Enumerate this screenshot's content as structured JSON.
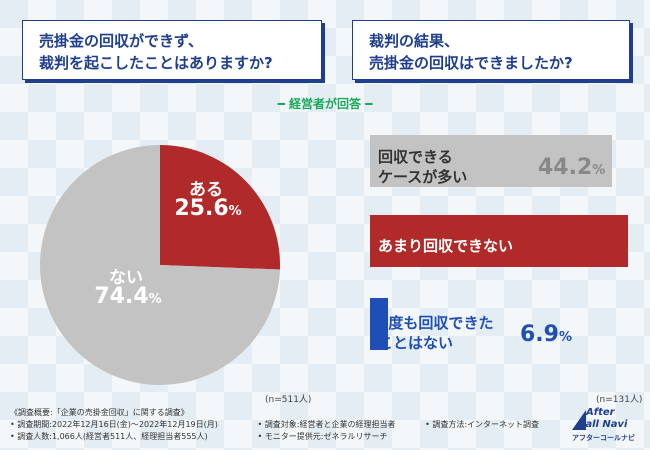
{
  "question1": {
    "line1": "売掛金の回収ができず、",
    "line2": "裁判を起こしたことはありますか?"
  },
  "question2": {
    "line1": "裁判の結果、",
    "line2": "売掛金の回収はできましたか?"
  },
  "subhead": "━ 経営者が回答 ━",
  "colors": {
    "red": "#b02a2a",
    "gray": "#c3c3c3",
    "blue": "#1f4fb5",
    "navy": "#1f3f8c",
    "green": "#1aa85a"
  },
  "chart_data": [
    {
      "type": "pie",
      "categories": [
        "ある",
        "ない"
      ],
      "values": [
        25.6,
        74.4
      ],
      "labels": {
        "aru_name": "ある",
        "aru_val": "25.6",
        "nai_name": "ない",
        "nai_val": "74.4",
        "pct": "%"
      },
      "n_label": "(n=511人)"
    },
    {
      "type": "bar",
      "categories": [
        "回収できるケースが多い",
        "あまり回収できない",
        "1度も回収できたことはない"
      ],
      "values": [
        44.2,
        48.9,
        6.9
      ],
      "xlim": [
        0,
        55
      ],
      "labels": [
        {
          "line1": "回収できる",
          "line2": "ケースが多い",
          "val": "44.2"
        },
        {
          "line1": "あまり回収できない",
          "line2": "",
          "val": "48.9"
        },
        {
          "line1": "1度も回収できた",
          "line2": "ことはない",
          "val": "6.9"
        }
      ],
      "pct": "%",
      "n_label": "(n=131人)"
    }
  ],
  "footer": {
    "line1": "《調査概要:「企業の売掛金回収」に関する調査》",
    "line2a": "• 調査期間:2022年12月16日(金)〜2022年12月19日(月)",
    "line2b": "• 調査対象:経営者と企業の経理担当者",
    "line2c": "• 調査方法:インターネット調査",
    "line3a": "• 調査人数:1,066人(経営者511人、経理担当者555人)",
    "line3b": "• モニター提供元:ゼネラルリサーチ"
  },
  "logo": {
    "text1": "After",
    "text2": "Call Navi",
    "text3": "アフターコールナビ"
  }
}
